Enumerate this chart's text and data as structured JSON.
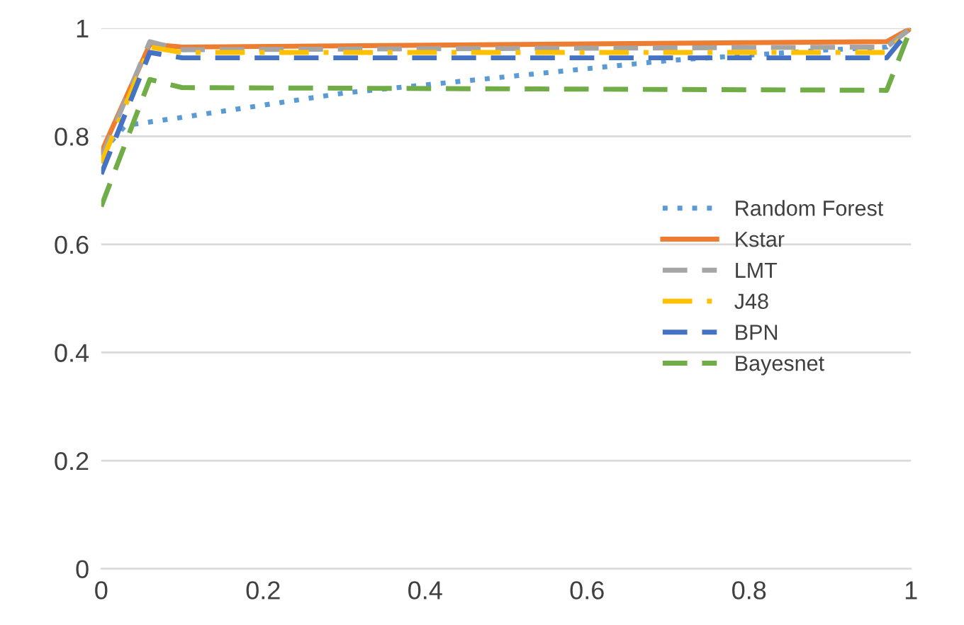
{
  "chart_data": {
    "type": "line",
    "xlim": [
      0,
      1
    ],
    "ylim": [
      0,
      1
    ],
    "xticks": [
      0,
      {
        "value": 0.2,
        "label": "0.2"
      },
      {
        "value": 0.4,
        "label": "0.4"
      },
      {
        "value": 0.6,
        "label": "0.6"
      },
      {
        "value": 0.8,
        "label": "0.8"
      },
      1
    ],
    "yticks": [
      0,
      {
        "value": 0.2,
        "label": "0.2"
      },
      {
        "value": 0.4,
        "label": "0.4"
      },
      {
        "value": 0.6,
        "label": "0.6"
      },
      {
        "value": 0.8,
        "label": "0.8"
      },
      1
    ],
    "grid": "y",
    "legend": "right",
    "marker": "none",
    "series": [
      {
        "name": "Random Forest",
        "color": "#5b9bd5",
        "line_style": "dotted",
        "x": [
          0,
          0.03,
          0.1,
          0.3,
          0.5,
          0.7,
          0.9,
          0.97,
          1
        ],
        "values": [
          0.77,
          0.82,
          0.835,
          0.88,
          0.91,
          0.94,
          0.96,
          0.965,
          1
        ]
      },
      {
        "name": "Kstar",
        "color": "#ed7d31",
        "line_style": "solid",
        "x": [
          0,
          0.06,
          0.1,
          0.97,
          1
        ],
        "values": [
          0.77,
          0.97,
          0.965,
          0.975,
          1
        ]
      },
      {
        "name": "LMT",
        "color": "#a5a5a5",
        "line_style": "dashed",
        "x": [
          0,
          0.06,
          0.1,
          0.97,
          1
        ],
        "values": [
          0.76,
          0.975,
          0.96,
          0.965,
          1
        ]
      },
      {
        "name": "J48",
        "color": "#ffc000",
        "line_style": "dashdot",
        "x": [
          0,
          0.06,
          0.1,
          0.97,
          1
        ],
        "values": [
          0.75,
          0.965,
          0.955,
          0.955,
          1
        ]
      },
      {
        "name": "BPN",
        "color": "#4472c4",
        "line_style": "dashed",
        "x": [
          0,
          0.06,
          0.1,
          0.97,
          1
        ],
        "values": [
          0.73,
          0.955,
          0.945,
          0.945,
          1
        ]
      },
      {
        "name": "Bayesnet",
        "color": "#70ad47",
        "line_style": "dashed",
        "x": [
          0,
          0.06,
          0.1,
          0.97,
          1
        ],
        "values": [
          0.67,
          0.905,
          0.89,
          0.885,
          1
        ]
      }
    ]
  }
}
